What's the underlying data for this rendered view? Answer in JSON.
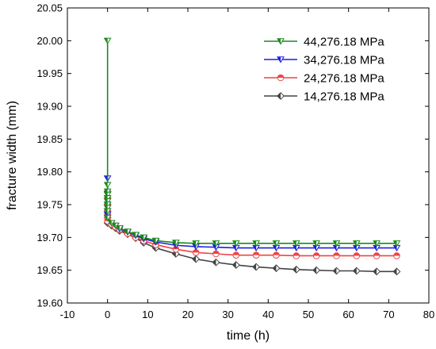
{
  "chart_data": {
    "type": "line",
    "xlabel": "time (h)",
    "ylabel": "fracture width (mm)",
    "xlim": [
      -10,
      80
    ],
    "ylim": [
      19.6,
      20.05
    ],
    "x_ticks": [
      -10,
      0,
      10,
      20,
      30,
      40,
      50,
      60,
      70,
      80
    ],
    "y_ticks": [
      19.6,
      19.65,
      19.7,
      19.75,
      19.8,
      19.85,
      19.9,
      19.95,
      20.0,
      20.05
    ],
    "grid": false,
    "legend_position": "top-right",
    "series": [
      {
        "name": "44,276.18 MPa",
        "color": "#1a8a1a",
        "marker": "triangle-down",
        "x": [
          0,
          0,
          0,
          0,
          0,
          0,
          0,
          0,
          0,
          0,
          1,
          2,
          3,
          5,
          7,
          9,
          12,
          17,
          22,
          27,
          32,
          37,
          42,
          47,
          52,
          57,
          62,
          67,
          72
        ],
        "y": [
          20.0,
          19.78,
          19.77,
          19.765,
          19.76,
          19.755,
          19.75,
          19.745,
          19.74,
          19.73,
          19.722,
          19.718,
          19.714,
          19.709,
          19.704,
          19.7,
          19.695,
          19.692,
          19.691,
          19.691,
          19.691,
          19.691,
          19.691,
          19.691,
          19.691,
          19.691,
          19.691,
          19.691,
          19.691
        ]
      },
      {
        "name": "34,276.18 MPa",
        "color": "#1f1fe0",
        "marker": "triangle-down",
        "x": [
          0,
          0,
          0,
          0,
          0,
          0,
          0,
          1,
          2,
          3,
          5,
          7,
          9,
          12,
          17,
          22,
          27,
          32,
          37,
          42,
          47,
          52,
          57,
          62,
          67,
          72
        ],
        "y": [
          19.79,
          19.76,
          19.75,
          19.745,
          19.74,
          19.735,
          19.73,
          19.722,
          19.718,
          19.713,
          19.708,
          19.703,
          19.698,
          19.693,
          19.688,
          19.686,
          19.685,
          19.684,
          19.684,
          19.684,
          19.684,
          19.684,
          19.684,
          19.684,
          19.684,
          19.684
        ]
      },
      {
        "name": "24,276.18 MPa",
        "color": "#ee4444",
        "marker": "circle-half",
        "x": [
          0,
          0,
          0,
          0,
          0,
          0,
          1,
          2,
          3,
          5,
          7,
          9,
          12,
          17,
          22,
          27,
          32,
          37,
          42,
          47,
          52,
          57,
          62,
          67,
          72
        ],
        "y": [
          19.76,
          19.75,
          19.74,
          19.735,
          19.73,
          19.725,
          19.72,
          19.716,
          19.712,
          19.706,
          19.7,
          19.695,
          19.689,
          19.682,
          19.677,
          19.675,
          19.673,
          19.673,
          19.673,
          19.672,
          19.672,
          19.672,
          19.672,
          19.672,
          19.672
        ]
      },
      {
        "name": "14,276.18 MPa",
        "color": "#444444",
        "marker": "diamond-half",
        "x": [
          0,
          0,
          0,
          0,
          0,
          0,
          1,
          2,
          3,
          5,
          7,
          9,
          12,
          17,
          22,
          27,
          32,
          37,
          42,
          47,
          52,
          57,
          62,
          67,
          72
        ],
        "y": [
          19.77,
          19.76,
          19.75,
          19.74,
          19.73,
          19.722,
          19.718,
          19.714,
          19.71,
          19.705,
          19.699,
          19.692,
          19.684,
          19.675,
          19.667,
          19.662,
          19.658,
          19.655,
          19.653,
          19.651,
          19.65,
          19.649,
          19.649,
          19.648,
          19.648
        ]
      }
    ]
  }
}
